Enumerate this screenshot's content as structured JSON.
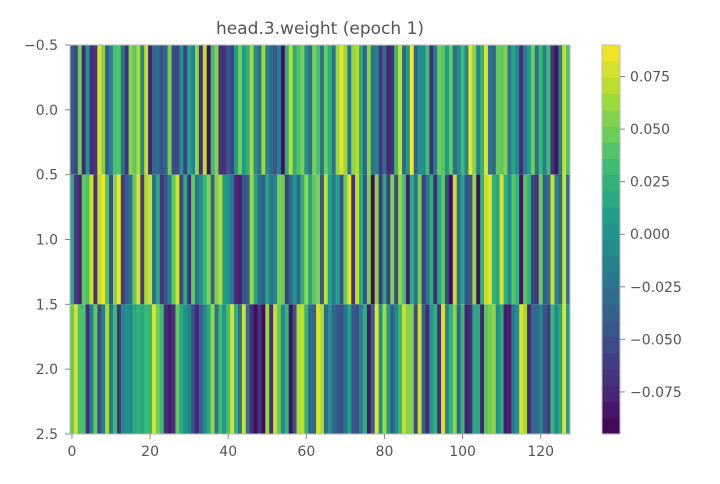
{
  "chart_data": {
    "type": "heatmap",
    "title": "head.3.weight (epoch 1)",
    "xlabel": "",
    "ylabel": "",
    "xlim": [
      -0.5,
      127.5
    ],
    "ylim": [
      2.5,
      -0.5
    ],
    "x_ticks": [
      0,
      20,
      40,
      60,
      80,
      100,
      120
    ],
    "x_tick_labels": [
      "0",
      "20",
      "40",
      "60",
      "80",
      "100",
      "120"
    ],
    "y_ticks": [
      -0.5,
      0.0,
      0.5,
      1.0,
      1.5,
      2.0,
      2.5
    ],
    "y_tick_labels": [
      "−0.5",
      "0.0",
      "0.5",
      "1.0",
      "1.5",
      "2.0",
      "2.5"
    ],
    "colormap": "viridis",
    "colorbar": {
      "vmin": -0.095,
      "vmax": 0.09,
      "ticks": [
        0.075,
        0.05,
        0.025,
        0.0,
        -0.025,
        -0.05,
        -0.075
      ],
      "tick_labels": [
        "0.075",
        "0.050",
        "0.025",
        "0.000",
        "−0.025",
        "−0.050",
        "−0.075"
      ]
    },
    "grid": false,
    "rows": 3,
    "columns": 128,
    "seed": 1,
    "note_values": "3x128 weight matrix of pseudo-random values in [-0.09, 0.09]"
  }
}
